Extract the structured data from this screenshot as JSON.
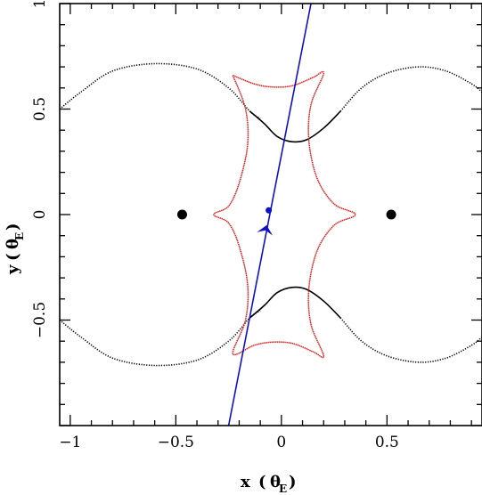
{
  "chart_data": {
    "type": "line",
    "title": "",
    "xlabel": "x",
    "ylabel": "y",
    "axis_unit": "θ",
    "axis_unit_sub": "E",
    "xlim": [
      -1.05,
      0.95
    ],
    "ylim": [
      -1.0,
      1.0
    ],
    "x_ticks": [
      {
        "value": -1,
        "label": "−1"
      },
      {
        "value": -0.5,
        "label": "−0.5"
      },
      {
        "value": 0,
        "label": "0"
      },
      {
        "value": 0.5,
        "label": "0.5"
      }
    ],
    "y_ticks": [
      {
        "value": -0.5,
        "label": "−0.5"
      },
      {
        "value": 0,
        "label": "0"
      },
      {
        "value": 0.5,
        "label": "0.5"
      },
      {
        "value": 1,
        "label": "1"
      }
    ],
    "colors": {
      "critical_curve": "#000000",
      "caustic": "#d61f1f",
      "trajectory": "#1010c8",
      "lens": "#000000"
    },
    "lens_positions": [
      {
        "x": -0.47,
        "y": 0.0
      },
      {
        "x": 0.52,
        "y": 0.0
      }
    ],
    "critical_curve_outer_upper": [
      [
        -1.05,
        0.5
      ],
      [
        -0.95,
        0.58
      ],
      [
        -0.8,
        0.68
      ],
      [
        -0.6,
        0.715
      ],
      [
        -0.4,
        0.69
      ],
      [
        -0.25,
        0.6
      ],
      [
        -0.15,
        0.49
      ],
      [
        -0.1,
        0.455
      ]
    ],
    "critical_curve_inner_upper": [
      [
        -0.15,
        0.49
      ],
      [
        -0.08,
        0.43
      ],
      [
        -0.02,
        0.37
      ],
      [
        0.05,
        0.345
      ],
      [
        0.12,
        0.355
      ],
      [
        0.2,
        0.41
      ],
      [
        0.28,
        0.49
      ]
    ],
    "critical_curve_outer_upper_right": [
      [
        0.28,
        0.49
      ],
      [
        0.38,
        0.6
      ],
      [
        0.5,
        0.67
      ],
      [
        0.65,
        0.7
      ],
      [
        0.78,
        0.68
      ],
      [
        0.9,
        0.62
      ],
      [
        0.95,
        0.58
      ]
    ],
    "caustic_points": [
      [
        -0.23,
        0.66
      ],
      [
        -0.13,
        0.62
      ],
      [
        -0.05,
        0.605
      ],
      [
        0.05,
        0.61
      ],
      [
        0.15,
        0.65
      ],
      [
        0.2,
        0.67
      ],
      [
        0.14,
        0.52
      ],
      [
        0.13,
        0.35
      ],
      [
        0.17,
        0.17
      ],
      [
        0.25,
        0.05
      ],
      [
        0.35,
        0.0
      ],
      [
        0.25,
        -0.05
      ],
      [
        0.17,
        -0.17
      ],
      [
        0.13,
        -0.35
      ],
      [
        0.14,
        -0.52
      ],
      [
        0.2,
        -0.67
      ],
      [
        0.15,
        -0.65
      ],
      [
        0.05,
        -0.61
      ],
      [
        -0.05,
        -0.605
      ],
      [
        -0.13,
        -0.62
      ],
      [
        -0.23,
        -0.66
      ],
      [
        -0.17,
        -0.5
      ],
      [
        -0.16,
        -0.33
      ],
      [
        -0.2,
        -0.15
      ],
      [
        -0.25,
        -0.04
      ],
      [
        -0.32,
        0.0
      ],
      [
        -0.25,
        0.04
      ],
      [
        -0.2,
        0.15
      ],
      [
        -0.16,
        0.33
      ],
      [
        -0.17,
        0.5
      ],
      [
        -0.23,
        0.66
      ]
    ],
    "trajectory": {
      "x": [
        -0.25,
        0.14
      ],
      "y": [
        -1.0,
        1.0
      ]
    },
    "source_position": {
      "x": -0.06,
      "y": 0.02
    },
    "direction_arrow": {
      "x": -0.07,
      "y": -0.05,
      "angle_deg": -102
    }
  }
}
